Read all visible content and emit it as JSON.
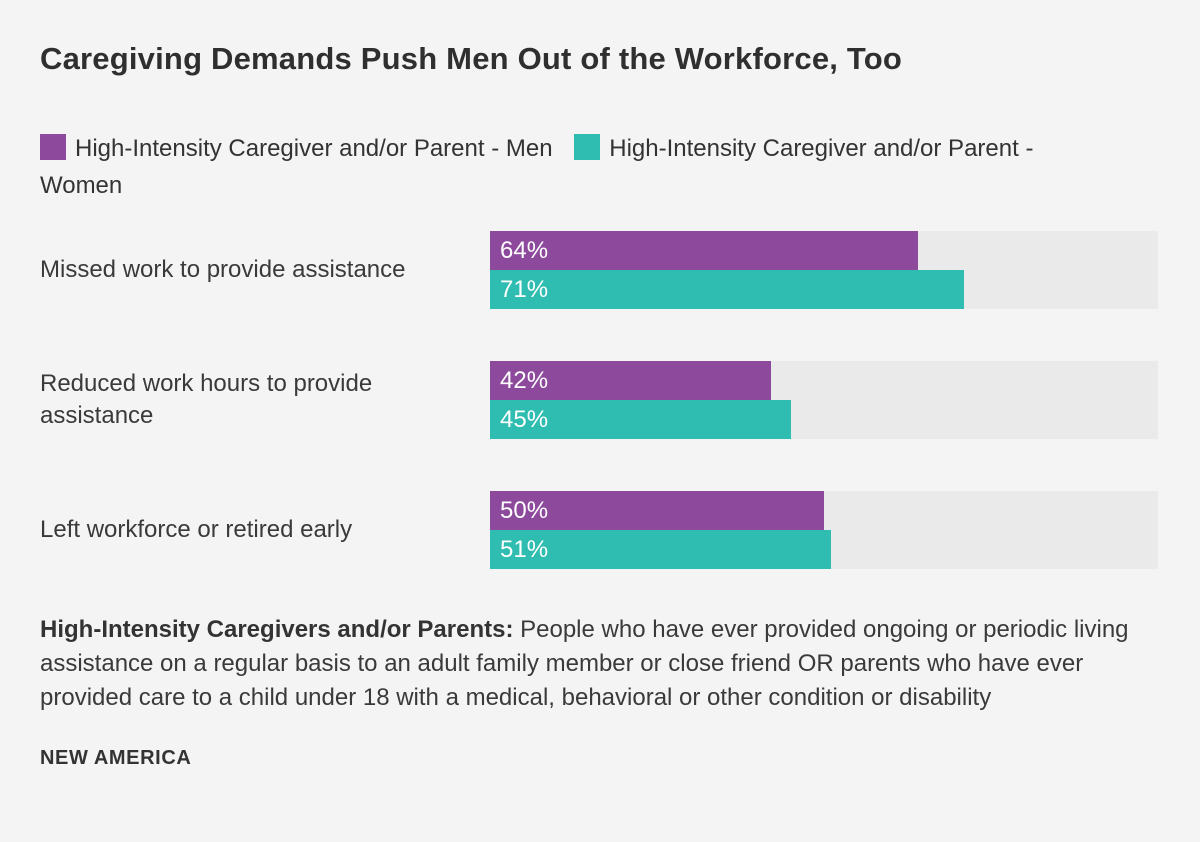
{
  "title": "Caregiving Demands Push Men Out of the Workforce, Too",
  "colors": {
    "background": "#f4f4f5",
    "track": "#eaeaeb",
    "men": "#8d4a9d",
    "women": "#2fbcb1",
    "title_text": "#2f2f2f",
    "body_text": "#3a3a3a",
    "bar_label_text": "#ffffff"
  },
  "legend": {
    "items": [
      {
        "key": "men",
        "label": "High-Intensity Caregiver and/or Parent - Men",
        "color": "#8d4a9d"
      },
      {
        "key": "women",
        "label": "High-Intensity Caregiver and/or Parent - Women",
        "color": "#2fbcb1"
      }
    ]
  },
  "chart_data": {
    "type": "bar",
    "orientation": "horizontal",
    "title": "Caregiving Demands Push Men Out of the Workforce, Too",
    "categories": [
      "Missed work to provide assistance",
      "Reduced work hours to provide assistance",
      "Left workforce or retired early"
    ],
    "series": [
      {
        "name": "High-Intensity Caregiver and/or Parent - Men",
        "key": "men",
        "color": "#8d4a9d",
        "values": [
          64,
          42,
          50
        ]
      },
      {
        "name": "High-Intensity Caregiver and/or Parent - Women",
        "key": "women",
        "color": "#2fbcb1",
        "values": [
          71,
          45,
          51
        ]
      }
    ],
    "value_suffix": "%",
    "xlim": [
      0,
      100
    ],
    "grid": false,
    "legend_position": "top",
    "value_labels": "inside-start"
  },
  "footnote": {
    "bold_lead": "High-Intensity Caregivers and/or Parents:",
    "text": " People who have ever provided ongoing or periodic living assistance on a regular basis to an adult family member or close friend OR parents who have ever provided care to a child under 18 with a medical, behavioral or other condition or disability"
  },
  "source": "NEW AMERICA"
}
